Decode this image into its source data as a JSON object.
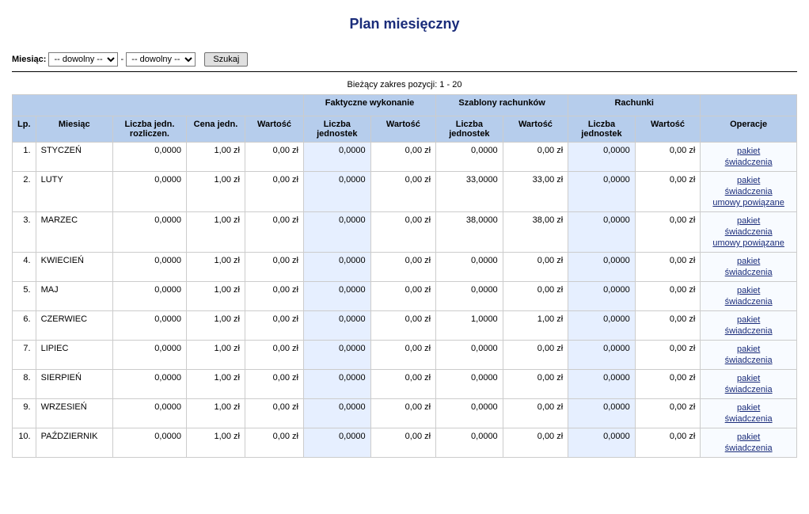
{
  "title": "Plan miesięczny",
  "filter": {
    "label": "Miesiąc:",
    "option_any": "-- dowolny --",
    "separator": "-",
    "search_btn": "Szukaj"
  },
  "range_label": "Bieżący zakres pozycji: 1 - 20",
  "columns": {
    "lp": "Lp.",
    "miesiac": "Miesiąc",
    "liczba_jedn_rozliczen": "Liczba jedn. rozliczen.",
    "cena_jedn": "Cena jedn.",
    "wartosc": "Wartość",
    "group_faktyczne": "Faktyczne wykonanie",
    "group_szablony": "Szablony rachunków",
    "group_rachunki": "Rachunki",
    "liczba_jednostek": "Liczba jednostek",
    "operacje": "Operacje"
  },
  "ops_links": {
    "pakiet": "pakiet",
    "swiadczenia": "świadczenia",
    "umowy_powiazane": "umowy powiązane"
  },
  "rows": [
    {
      "lp": "1.",
      "miesiac": "STYCZEŃ",
      "ljr": "0,0000",
      "cj": "1,00 zł",
      "w": "0,00 zł",
      "flj": "0,0000",
      "fw": "0,00 zł",
      "slj": "0,0000",
      "sw": "0,00 zł",
      "rlj": "0,0000",
      "rw": "0,00 zł",
      "extra": false
    },
    {
      "lp": "2.",
      "miesiac": "LUTY",
      "ljr": "0,0000",
      "cj": "1,00 zł",
      "w": "0,00 zł",
      "flj": "0,0000",
      "fw": "0,00 zł",
      "slj": "33,0000",
      "sw": "33,00 zł",
      "rlj": "0,0000",
      "rw": "0,00 zł",
      "extra": true
    },
    {
      "lp": "3.",
      "miesiac": "MARZEC",
      "ljr": "0,0000",
      "cj": "1,00 zł",
      "w": "0,00 zł",
      "flj": "0,0000",
      "fw": "0,00 zł",
      "slj": "38,0000",
      "sw": "38,00 zł",
      "rlj": "0,0000",
      "rw": "0,00 zł",
      "extra": true
    },
    {
      "lp": "4.",
      "miesiac": "KWIECIEŃ",
      "ljr": "0,0000",
      "cj": "1,00 zł",
      "w": "0,00 zł",
      "flj": "0,0000",
      "fw": "0,00 zł",
      "slj": "0,0000",
      "sw": "0,00 zł",
      "rlj": "0,0000",
      "rw": "0,00 zł",
      "extra": false
    },
    {
      "lp": "5.",
      "miesiac": "MAJ",
      "ljr": "0,0000",
      "cj": "1,00 zł",
      "w": "0,00 zł",
      "flj": "0,0000",
      "fw": "0,00 zł",
      "slj": "0,0000",
      "sw": "0,00 zł",
      "rlj": "0,0000",
      "rw": "0,00 zł",
      "extra": false
    },
    {
      "lp": "6.",
      "miesiac": "CZERWIEC",
      "ljr": "0,0000",
      "cj": "1,00 zł",
      "w": "0,00 zł",
      "flj": "0,0000",
      "fw": "0,00 zł",
      "slj": "1,0000",
      "sw": "1,00 zł",
      "rlj": "0,0000",
      "rw": "0,00 zł",
      "extra": false
    },
    {
      "lp": "7.",
      "miesiac": "LIPIEC",
      "ljr": "0,0000",
      "cj": "1,00 zł",
      "w": "0,00 zł",
      "flj": "0,0000",
      "fw": "0,00 zł",
      "slj": "0,0000",
      "sw": "0,00 zł",
      "rlj": "0,0000",
      "rw": "0,00 zł",
      "extra": false
    },
    {
      "lp": "8.",
      "miesiac": "SIERPIEŃ",
      "ljr": "0,0000",
      "cj": "1,00 zł",
      "w": "0,00 zł",
      "flj": "0,0000",
      "fw": "0,00 zł",
      "slj": "0,0000",
      "sw": "0,00 zł",
      "rlj": "0,0000",
      "rw": "0,00 zł",
      "extra": false
    },
    {
      "lp": "9.",
      "miesiac": "WRZESIEŃ",
      "ljr": "0,0000",
      "cj": "1,00 zł",
      "w": "0,00 zł",
      "flj": "0,0000",
      "fw": "0,00 zł",
      "slj": "0,0000",
      "sw": "0,00 zł",
      "rlj": "0,0000",
      "rw": "0,00 zł",
      "extra": false
    },
    {
      "lp": "10.",
      "miesiac": "PAŹDZIERNIK",
      "ljr": "0,0000",
      "cj": "1,00 zł",
      "w": "0,00 zł",
      "flj": "0,0000",
      "fw": "0,00 zł",
      "slj": "0,0000",
      "sw": "0,00 zł",
      "rlj": "0,0000",
      "rw": "0,00 zł",
      "extra": false
    }
  ],
  "colors": {
    "header_bg": "#b6cdec",
    "highlight_bg": "#e6efff",
    "link_color": "#1a2c7a",
    "title_color": "#1a2c7a",
    "border_color": "#cccccc"
  }
}
